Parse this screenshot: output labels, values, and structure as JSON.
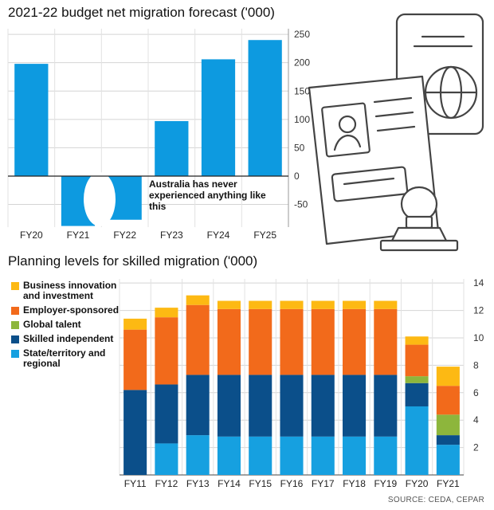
{
  "chart_data": [
    {
      "type": "bar",
      "title": "2021-22 budget net migration forecast ('000)",
      "categories": [
        "FY20",
        "FY21",
        "FY22",
        "FY23",
        "FY24",
        "FY25"
      ],
      "values": [
        198,
        -88,
        -77,
        97,
        206,
        240
      ],
      "ylim": [
        -90,
        260
      ],
      "yticks": [
        -50,
        0,
        50,
        100,
        150,
        200,
        250
      ],
      "color": "#0d9ae0",
      "grid": true,
      "annotation": "Australia has never experienced anything like this"
    },
    {
      "type": "bar",
      "stacked": true,
      "title": "Planning levels for skilled migration ('000)",
      "categories": [
        "FY11",
        "FY12",
        "FY13",
        "FY14",
        "FY15",
        "FY16",
        "FY17",
        "FY18",
        "FY19",
        "FY20",
        "FY21"
      ],
      "ylim": [
        0,
        14.3
      ],
      "yticks": [
        2,
        4,
        6,
        8,
        10,
        12,
        14
      ],
      "grid": true,
      "legend_position": "top-left",
      "series": [
        {
          "name": "State/territory and regional",
          "color": "#16a0e0",
          "values": [
            0,
            2.3,
            2.9,
            2.8,
            2.8,
            2.8,
            2.8,
            2.8,
            2.8,
            5.0,
            2.2
          ]
        },
        {
          "name": "Skilled independent",
          "color": "#0b4f8a",
          "values": [
            6.2,
            4.3,
            4.4,
            4.5,
            4.5,
            4.5,
            4.5,
            4.5,
            4.5,
            1.7,
            0.7
          ]
        },
        {
          "name": "Global talent",
          "color": "#8db63c",
          "values": [
            0,
            0,
            0,
            0,
            0,
            0,
            0,
            0,
            0,
            0.5,
            1.5
          ]
        },
        {
          "name": "Employer-sponsored",
          "color": "#f26a1b",
          "values": [
            4.4,
            4.9,
            5.1,
            4.8,
            4.8,
            4.8,
            4.8,
            4.8,
            4.8,
            2.3,
            2.1
          ]
        },
        {
          "name": "Business innovation and investment",
          "color": "#fdb913",
          "values": [
            0.8,
            0.7,
            0.7,
            0.6,
            0.6,
            0.6,
            0.6,
            0.6,
            0.6,
            0.6,
            1.4
          ]
        }
      ],
      "source": "SOURCE: CEDA, CEPAR"
    }
  ]
}
